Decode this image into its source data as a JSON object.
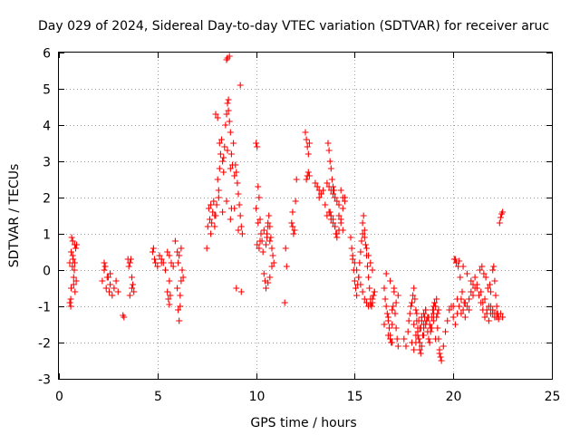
{
  "chart_data": {
    "type": "scatter",
    "title": "Day 029 of 2024, Sidereal Day-to-day VTEC variation (SDTVAR) for receiver aruc",
    "xlabel": "GPS time / hours",
    "ylabel": "SDTVAR / TECUs",
    "xlim": [
      0,
      25
    ],
    "ylim": [
      -3,
      6
    ],
    "xticks": [
      0,
      5,
      10,
      15,
      20,
      25
    ],
    "yticks": [
      -3,
      -2,
      -1,
      0,
      1,
      2,
      3,
      4,
      5,
      6
    ],
    "grid": true,
    "marker": "plus",
    "color": "#ff0000",
    "series": [
      {
        "name": "SDTVAR",
        "x": [
          0.55,
          0.6,
          0.62,
          0.65,
          0.7,
          0.72,
          0.75,
          0.78,
          0.8,
          0.85,
          0.9,
          0.55,
          0.62,
          0.68,
          0.75,
          0.82,
          0.88,
          0.6,
          0.7,
          0.8,
          2.2,
          2.3,
          2.35,
          2.4,
          2.5,
          2.55,
          2.6,
          2.7,
          2.8,
          2.9,
          3.0,
          2.3,
          2.45,
          2.6,
          3.3,
          3.25,
          3.5,
          3.55,
          3.6,
          3.65,
          3.7,
          3.75,
          3.8,
          3.6,
          3.7,
          4.75,
          4.8,
          4.85,
          4.9,
          5.0,
          5.1,
          5.2,
          5.3,
          5.4,
          5.5,
          5.6,
          5.7,
          5.8,
          5.5,
          5.55,
          5.6,
          5.65,
          5.2,
          5.4,
          5.6,
          5.9,
          6.0,
          6.05,
          6.1,
          6.15,
          6.2,
          6.25,
          6.3,
          6.05,
          6.1,
          6.2,
          6.0,
          6.15,
          7.5,
          7.55,
          7.6,
          7.65,
          7.7,
          7.75,
          7.8,
          7.85,
          7.9,
          7.95,
          8.0,
          8.05,
          8.1,
          8.15,
          8.2,
          8.25,
          8.3,
          8.35,
          8.4,
          8.45,
          8.5,
          8.55,
          8.6,
          8.65,
          8.7,
          8.75,
          8.8,
          8.85,
          8.9,
          8.95,
          9.0,
          9.05,
          9.1,
          9.15,
          9.2,
          9.25,
          9.3,
          7.7,
          7.9,
          8.1,
          8.3,
          8.5,
          8.7,
          8.9,
          9.1,
          7.95,
          8.05,
          8.15,
          8.35,
          8.55,
          8.6,
          8.65,
          8.5,
          8.55,
          8.7,
          8.75,
          9.0,
          9.2,
          9.25,
          10.0,
          10.05,
          10.1,
          10.15,
          10.2,
          10.25,
          10.3,
          10.35,
          10.4,
          10.5,
          10.55,
          10.6,
          10.65,
          10.7,
          10.75,
          10.8,
          10.85,
          10.9,
          10.0,
          10.1,
          10.2,
          10.05,
          10.15,
          10.4,
          10.45,
          10.5,
          10.6,
          10.7,
          10.8,
          10.55,
          10.6,
          10.7,
          11.5,
          11.55,
          11.45,
          11.8,
          11.85,
          11.9,
          11.95,
          12.0,
          12.05,
          11.85,
          12.5,
          12.55,
          12.6,
          12.65,
          12.7,
          12.55,
          12.6,
          12.65,
          12.7,
          13.0,
          13.1,
          13.2,
          13.3,
          13.4,
          13.5,
          13.6,
          13.7,
          13.8,
          13.9,
          14.0,
          14.1,
          14.2,
          14.3,
          14.4,
          14.5,
          13.65,
          13.7,
          13.75,
          13.8,
          13.85,
          13.9,
          13.95,
          14.0,
          13.6,
          13.7,
          13.8,
          13.9,
          14.0,
          14.1,
          14.2,
          14.3,
          14.4,
          14.5,
          13.1,
          13.2,
          13.3,
          14.2,
          14.3,
          14.4,
          13.75,
          13.8,
          13.9,
          14.0,
          14.05,
          14.1,
          14.8,
          14.85,
          14.9,
          14.95,
          15.0,
          15.05,
          15.1,
          15.15,
          15.2,
          15.25,
          15.3,
          15.35,
          15.4,
          15.45,
          15.5,
          15.55,
          15.6,
          15.65,
          15.7,
          15.75,
          15.8,
          15.85,
          15.9,
          15.95,
          16.0,
          14.9,
          15.0,
          15.1,
          15.2,
          15.3,
          15.4,
          15.5,
          15.6,
          15.7,
          15.8,
          15.9,
          16.0,
          15.4,
          15.5,
          15.6,
          15.7,
          15.8,
          15.9,
          16.5,
          16.55,
          16.6,
          16.65,
          16.7,
          16.75,
          16.8,
          16.85,
          16.9,
          16.95,
          17.0,
          17.05,
          17.1,
          17.15,
          17.2,
          16.6,
          16.8,
          17.0,
          17.2,
          16.5,
          16.7,
          16.9,
          17.1,
          16.7,
          16.8,
          16.9,
          17.5,
          17.6,
          17.7,
          17.75,
          17.8,
          17.85,
          17.9,
          17.95,
          18.0,
          18.05,
          18.1,
          18.15,
          18.2,
          18.25,
          18.3,
          18.35,
          18.4,
          18.45,
          18.5,
          18.55,
          18.6,
          18.65,
          18.7,
          18.75,
          18.8,
          18.85,
          18.9,
          18.95,
          19.0,
          19.05,
          19.1,
          19.15,
          19.2,
          19.25,
          19.3,
          19.35,
          19.4,
          18.0,
          18.2,
          18.4,
          18.6,
          18.8,
          19.0,
          19.2,
          18.1,
          18.3,
          18.5,
          18.7,
          18.9,
          19.1,
          19.3,
          18.15,
          18.25,
          18.35,
          18.5,
          18.6,
          18.75,
          18.85,
          19.0,
          19.15,
          19.25,
          17.9,
          18.0,
          18.1,
          18.2,
          18.3,
          18.4,
          18.5,
          19.5,
          19.6,
          19.7,
          19.8,
          19.9,
          20.0,
          20.1,
          20.2,
          20.3,
          20.4,
          20.5,
          20.6,
          20.7,
          20.8,
          20.9,
          21.0,
          21.1,
          21.2,
          21.3,
          21.4,
          21.5,
          21.6,
          21.7,
          21.8,
          21.9,
          22.0,
          22.1,
          22.2,
          22.3,
          22.4,
          22.5,
          20.0,
          20.2,
          20.4,
          20.6,
          20.8,
          21.0,
          21.2,
          21.4,
          21.6,
          21.8,
          22.0,
          22.2,
          20.1,
          20.3,
          20.5,
          20.7,
          20.9,
          21.1,
          21.3,
          21.5,
          21.7,
          21.9,
          22.1,
          22.3,
          20.05,
          20.15,
          20.25,
          20.35,
          20.45,
          20.55,
          21.35,
          21.45,
          21.55,
          21.65,
          21.75,
          21.85,
          21.9,
          22.0,
          22.05,
          22.1,
          22.15,
          22.2,
          22.25,
          22.35,
          22.4,
          22.45,
          22.5
        ],
        "y": [
          -0.9,
          -0.8,
          0.5,
          0.9,
          0.8,
          0.3,
          -0.2,
          0.0,
          0.7,
          0.6,
          0.7,
          0.2,
          -0.5,
          0.1,
          -0.4,
          -0.6,
          -0.3,
          -1.0,
          0.4,
          0.2,
          -0.3,
          0.2,
          0.1,
          -0.5,
          -0.2,
          -0.6,
          -0.4,
          -0.7,
          -0.5,
          -0.3,
          -0.6,
          0.0,
          -0.2,
          -0.1,
          -1.3,
          -1.25,
          0.3,
          0.1,
          0.2,
          0.3,
          -0.2,
          -0.4,
          -0.6,
          -0.7,
          -0.5,
          0.5,
          0.6,
          0.3,
          0.2,
          0.1,
          0.4,
          0.3,
          0.2,
          0.0,
          0.5,
          0.4,
          0.2,
          0.1,
          -0.6,
          -0.8,
          -0.95,
          -0.7,
          0.2,
          0.0,
          -0.3,
          0.8,
          0.5,
          -1.1,
          -1.4,
          -0.7,
          -0.3,
          0.0,
          -0.2,
          0.2,
          0.4,
          0.6,
          -0.5,
          -1.0,
          0.6,
          1.2,
          1.7,
          1.4,
          1.0,
          1.3,
          1.6,
          1.9,
          1.2,
          1.5,
          1.8,
          2.5,
          2.2,
          2.8,
          3.2,
          3.6,
          3.0,
          2.7,
          3.4,
          4.0,
          4.3,
          4.6,
          4.4,
          4.1,
          3.8,
          3.2,
          2.9,
          3.5,
          2.6,
          2.9,
          2.7,
          2.4,
          2.1,
          1.8,
          1.5,
          1.2,
          1.0,
          1.8,
          1.5,
          2.0,
          1.6,
          1.9,
          1.4,
          1.7,
          1.1,
          4.3,
          4.2,
          3.5,
          3.1,
          3.3,
          4.7,
          5.9,
          5.8,
          5.85,
          2.8,
          1.7,
          -0.5,
          5.1,
          -0.6,
          3.5,
          3.4,
          2.3,
          2.0,
          1.4,
          1.0,
          0.8,
          0.5,
          1.1,
          0.7,
          0.9,
          1.3,
          1.5,
          1.2,
          0.9,
          0.6,
          0.4,
          0.2,
          1.7,
          1.3,
          0.8,
          0.7,
          0.6,
          -0.1,
          -0.3,
          -0.5,
          -0.35,
          -0.2,
          0.1,
          1.0,
          1.2,
          0.8,
          0.6,
          0.1,
          -0.9,
          1.3,
          1.2,
          1.0,
          1.1,
          1.9,
          2.5,
          1.6,
          3.8,
          3.6,
          3.4,
          3.2,
          2.6,
          2.5,
          2.6,
          2.7,
          3.5,
          2.4,
          2.3,
          2.0,
          2.1,
          2.2,
          1.8,
          1.5,
          1.6,
          1.4,
          1.3,
          1.2,
          1.0,
          1.1,
          1.4,
          1.7,
          2.0,
          3.5,
          3.3,
          3.0,
          2.8,
          2.5,
          2.3,
          2.2,
          2.0,
          2.4,
          2.3,
          2.2,
          2.1,
          2.0,
          1.9,
          1.8,
          2.2,
          2.0,
          1.9,
          2.3,
          2.2,
          2.1,
          1.5,
          1.3,
          1.1,
          1.6,
          1.5,
          1.4,
          1.2,
          1.0,
          0.9,
          0.9,
          0.6,
          0.3,
          0.0,
          -0.3,
          -0.5,
          -0.7,
          -0.4,
          -0.2,
          0.2,
          0.5,
          0.8,
          1.3,
          1.5,
          1.1,
          0.7,
          0.4,
          0.1,
          -0.2,
          -0.5,
          -0.8,
          -1.0,
          -0.9,
          -0.7,
          -0.6,
          0.4,
          0.2,
          0.0,
          -0.2,
          -0.4,
          -0.6,
          -0.8,
          -0.9,
          -1.0,
          -0.95,
          -0.8,
          -0.6,
          1.0,
          0.9,
          0.6,
          0.4,
          0.2,
          0.0,
          -0.5,
          -0.8,
          -1.0,
          -1.2,
          -1.4,
          -1.6,
          -1.8,
          -2.0,
          -1.5,
          -1.0,
          -0.6,
          -1.2,
          -1.6,
          -1.9,
          -2.1,
          -0.1,
          -0.3,
          -0.5,
          -0.7,
          -1.5,
          -1.3,
          -1.1,
          -0.9,
          -1.8,
          -1.9,
          -2.0,
          -1.9,
          -2.1,
          -1.7,
          -1.4,
          -1.2,
          -1.0,
          -0.9,
          -0.7,
          -0.5,
          -0.8,
          -1.1,
          -1.4,
          -1.6,
          -1.9,
          -2.2,
          -2.3,
          -2.1,
          -1.8,
          -1.5,
          -1.3,
          -1.1,
          -1.4,
          -1.7,
          -1.9,
          -2.0,
          -1.6,
          -1.3,
          -1.1,
          -1.2,
          -0.9,
          -1.0,
          -1.3,
          -1.6,
          -1.9,
          -2.2,
          -2.4,
          -2.5,
          -1.5,
          -1.7,
          -1.3,
          -1.1,
          -1.5,
          -1.4,
          -1.2,
          -1.8,
          -2.0,
          -1.6,
          -1.3,
          -1.6,
          -1.9,
          -2.3,
          -1.2,
          -1.4,
          -1.6,
          -1.8,
          -1.5,
          -1.3,
          -1.7,
          -1.0,
          -0.8,
          -1.1,
          -2.0,
          -2.2,
          -2.0,
          -1.8,
          -1.6,
          -1.4,
          -1.2,
          -2.1,
          -1.7,
          -1.4,
          -1.1,
          -1.0,
          -1.3,
          -1.5,
          -1.2,
          -1.0,
          -0.8,
          -1.1,
          -1.3,
          -1.0,
          -0.8,
          -0.6,
          -0.4,
          -0.2,
          -0.5,
          -0.7,
          -0.9,
          -1.1,
          -1.3,
          -1.2,
          -1.4,
          -1.2,
          -1.1,
          -1.3,
          -1.2,
          -1.3,
          -1.2,
          -1.3,
          -1.0,
          -0.8,
          -1.2,
          -0.9,
          -1.1,
          -0.7,
          -0.4,
          -0.6,
          -0.8,
          -1.0,
          -1.2,
          -1.3,
          0.3,
          0.25,
          0.1,
          -0.1,
          -0.3,
          -0.5,
          -0.7,
          -0.9,
          -1.1,
          -1.0,
          -1.2,
          -1.35,
          0.3,
          0.2,
          0.1,
          -0.2,
          -0.6,
          -0.9,
          0.0,
          0.1,
          -0.1,
          -0.2,
          -0.5,
          -0.4,
          -0.6,
          0.0,
          0.1,
          -0.3,
          -0.7,
          -1.0,
          -1.2,
          1.3,
          1.45,
          1.55,
          1.6
        ]
      }
    ]
  }
}
